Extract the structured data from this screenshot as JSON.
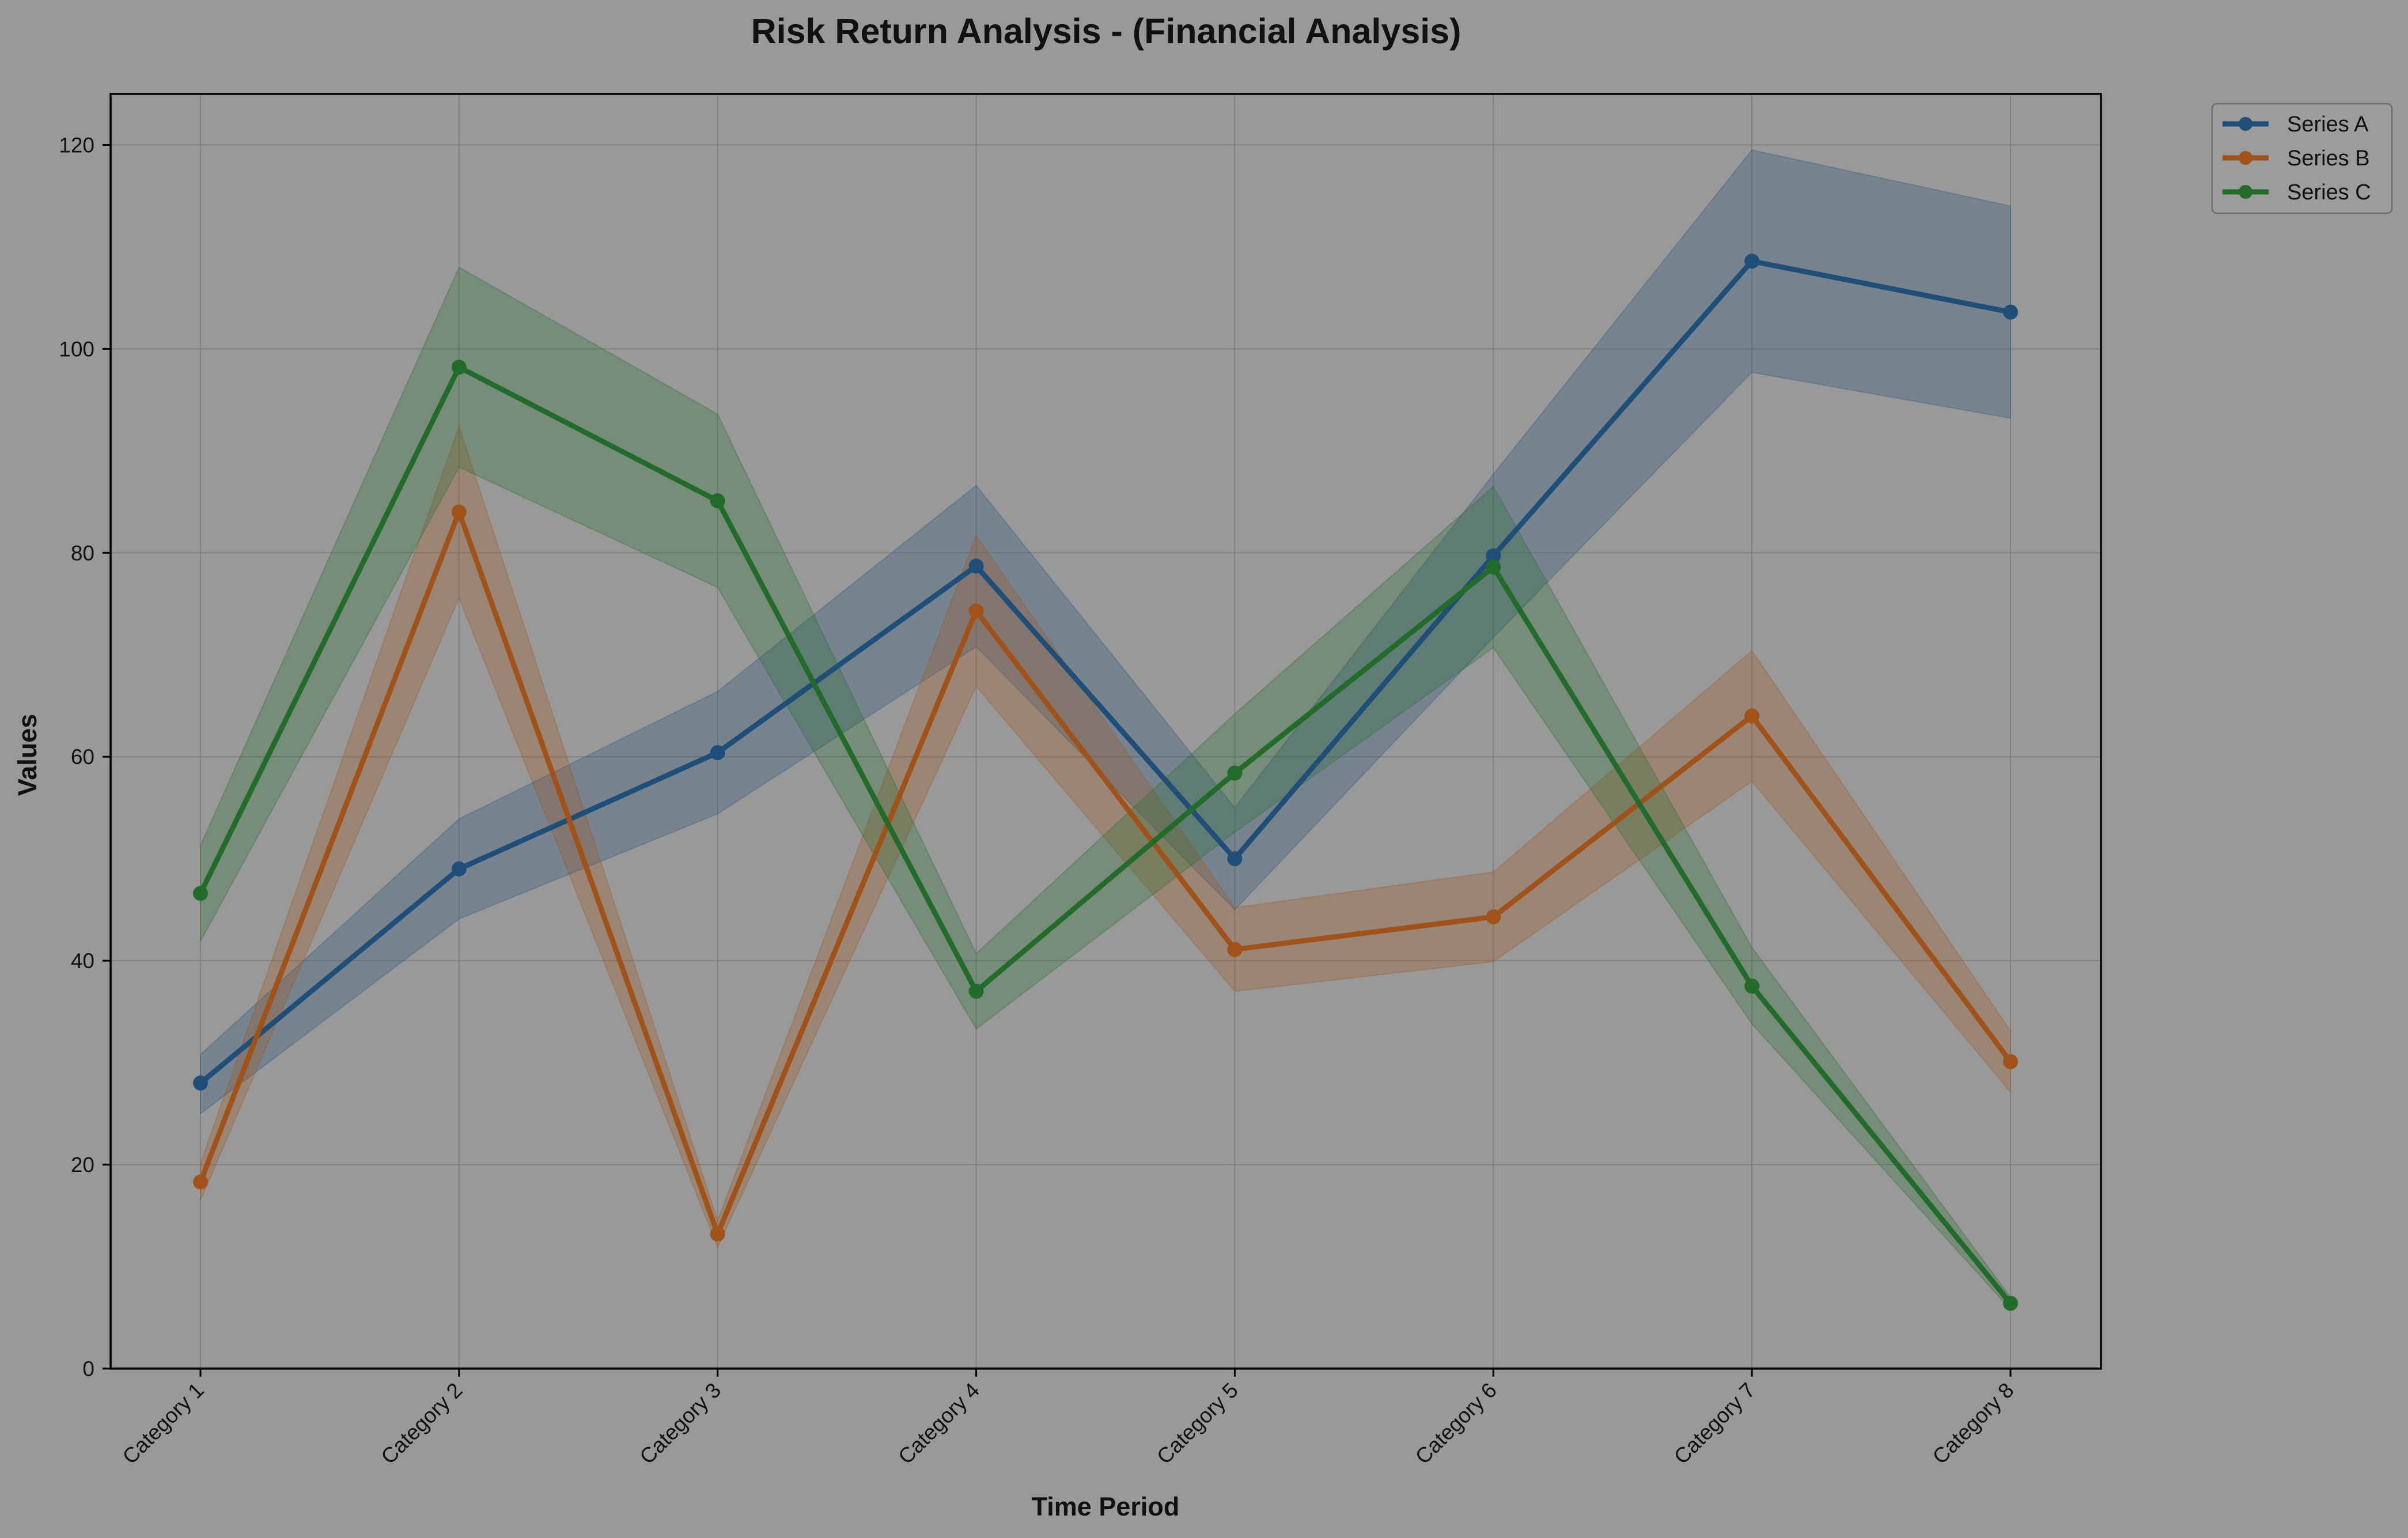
{
  "chart_data": {
    "type": "line",
    "title": "Risk Return Analysis - (Financial Analysis)",
    "xlabel": "Time Period",
    "ylabel": "Values",
    "categories": [
      "Category 1",
      "Category 2",
      "Category 3",
      "Category 4",
      "Category 5",
      "Category 6",
      "Category 7",
      "Category 8"
    ],
    "ylim": [
      0,
      125
    ],
    "yticks": [
      0,
      20,
      40,
      60,
      80,
      100,
      120
    ],
    "grid": true,
    "legend_position": "outside-top-right",
    "background_color": "#999999",
    "series": [
      {
        "name": "Series A",
        "color": "#1f4e79",
        "values": [
          28.0,
          49.0,
          60.4,
          78.7,
          50.0,
          79.7,
          108.6,
          103.6
        ],
        "band_lower": [
          25.0,
          44.1,
          54.4,
          70.8,
          45.0,
          71.7,
          97.7,
          93.2
        ],
        "band_upper": [
          30.8,
          53.9,
          66.4,
          86.6,
          55.0,
          87.7,
          119.5,
          114.0
        ]
      },
      {
        "name": "Series B",
        "color": "#a0521a",
        "values": [
          18.3,
          84.0,
          13.2,
          74.3,
          41.1,
          44.3,
          64.0,
          30.1
        ],
        "band_lower": [
          16.5,
          75.6,
          11.9,
          66.9,
          37.0,
          39.9,
          57.6,
          27.1
        ],
        "band_upper": [
          20.1,
          92.4,
          14.5,
          81.7,
          45.2,
          48.7,
          70.4,
          33.1
        ]
      },
      {
        "name": "Series C",
        "color": "#236b2a",
        "values": [
          46.6,
          98.2,
          85.1,
          37.0,
          58.4,
          78.6,
          37.5,
          6.4
        ],
        "band_lower": [
          41.9,
          88.4,
          76.6,
          33.3,
          52.6,
          70.7,
          33.8,
          5.8
        ],
        "band_upper": [
          51.3,
          108.0,
          93.6,
          40.7,
          64.2,
          86.5,
          41.3,
          7.0
        ]
      }
    ]
  }
}
